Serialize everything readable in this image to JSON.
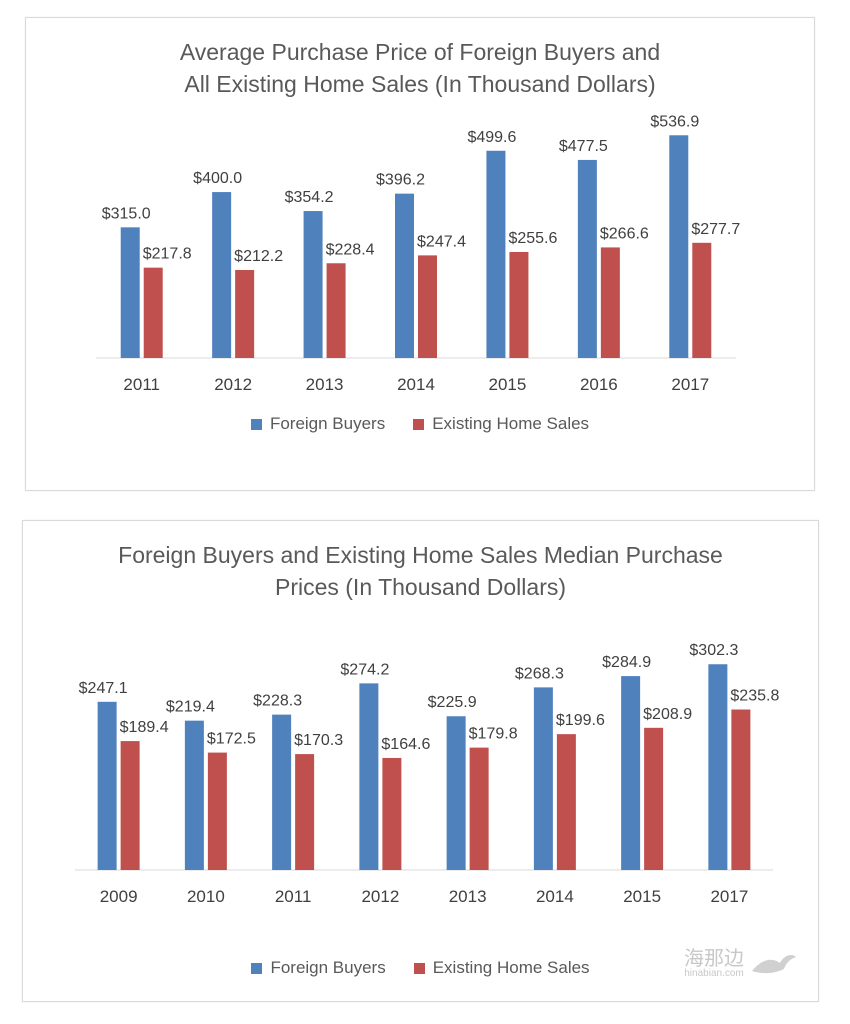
{
  "chart_data": [
    {
      "type": "bar",
      "title_lines": [
        "Average Purchase Price of Foreign Buyers and",
        "All Existing Home Sales (In Thousand Dollars)"
      ],
      "categories": [
        "2011",
        "2012",
        "2013",
        "2014",
        "2015",
        "2016",
        "2017"
      ],
      "series": [
        {
          "name": "Foreign Buyers",
          "color": "#4f81bd",
          "values": [
            315.0,
            400.0,
            354.2,
            396.2,
            499.6,
            477.5,
            536.9
          ],
          "labels": [
            "$315.0",
            "$400.0",
            "$354.2",
            "$396.2",
            "$499.6",
            "$477.5",
            "$536.9"
          ]
        },
        {
          "name": "Existing Home Sales",
          "color": "#c0504d",
          "values": [
            217.8,
            212.2,
            228.4,
            247.4,
            255.6,
            266.6,
            277.7
          ],
          "labels": [
            "$217.8",
            "$212.2",
            "$228.4",
            "$247.4",
            "$255.6",
            "$266.6",
            "$277.7"
          ]
        }
      ],
      "ylim": [
        0,
        540
      ],
      "grid": false,
      "legend": "bottom"
    },
    {
      "type": "bar",
      "title_lines": [
        "Foreign Buyers and Existing Home Sales Median Purchase",
        "Prices (In Thousand Dollars)"
      ],
      "categories": [
        "2009",
        "2010",
        "2011",
        "2012",
        "2013",
        "2014",
        "2015",
        "2017"
      ],
      "series": [
        {
          "name": "Foreign Buyers",
          "color": "#4f81bd",
          "values": [
            247.1,
            219.4,
            228.3,
            274.2,
            225.9,
            268.3,
            284.9,
            302.3
          ],
          "labels": [
            "$247.1",
            "$219.4",
            "$228.3",
            "$274.2",
            "$225.9",
            "$268.3",
            "$284.9",
            "$302.3"
          ]
        },
        {
          "name": "Existing Home Sales",
          "color": "#c0504d",
          "values": [
            189.4,
            172.5,
            170.3,
            164.6,
            179.8,
            199.6,
            208.9,
            235.8
          ],
          "labels": [
            "$189.4",
            "$172.5",
            "$170.3",
            "$164.6",
            "$179.8",
            "$199.6",
            "$208.9",
            "$235.8"
          ]
        }
      ],
      "ylim": [
        0,
        310
      ],
      "grid": false,
      "legend": "bottom"
    }
  ],
  "watermark": {
    "text": "海那边",
    "subtext": "hinabian.com"
  }
}
